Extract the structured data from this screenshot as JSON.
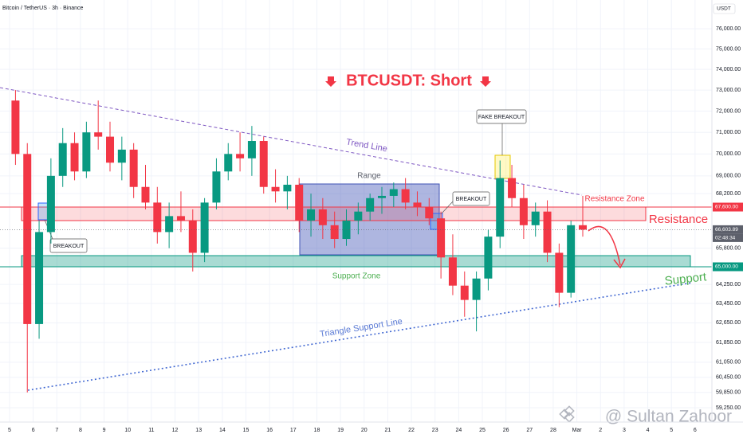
{
  "header": "Bitcoin / TetherUS · 3h · Binance",
  "currency": "USDT",
  "watermark": "@ Sultan Zahoor",
  "chart_data": {
    "type": "candlestick",
    "title": "BTCUSDT: Short",
    "open": [
      72500,
      70000,
      62600,
      66500,
      69000,
      70500,
      69200,
      71000,
      70800,
      69600,
      70200,
      68500,
      67800,
      66500,
      67200,
      67000,
      65600,
      67800,
      69200,
      70000,
      69800,
      70600,
      68500,
      68300,
      68600,
      67000,
      67500,
      66800,
      66200,
      67000,
      67400,
      68000,
      68100,
      68400,
      67800,
      67600,
      67100,
      65400,
      64200,
      63600,
      64500,
      66300,
      68900,
      68000,
      66800,
      67400,
      65600,
      63900,
      66800
    ],
    "high": [
      73000,
      70500,
      67000,
      69800,
      71200,
      71000,
      71500,
      72500,
      71500,
      70800,
      70500,
      69500,
      68500,
      67800,
      68300,
      67500,
      68000,
      69800,
      70500,
      71000,
      71300,
      70800,
      69300,
      69000,
      68900,
      68200,
      68000,
      67400,
      67500,
      67800,
      68200,
      68500,
      68700,
      68900,
      68300,
      68000,
      67400,
      66400,
      64800,
      64800,
      66600,
      69700,
      69500,
      68600,
      67800,
      67900,
      66000,
      67000,
      68100
    ],
    "low": [
      69500,
      59850,
      62000,
      66000,
      68500,
      68800,
      68900,
      70200,
      69200,
      68800,
      68000,
      67500,
      66000,
      65800,
      66500,
      64800,
      65200,
      67500,
      68800,
      69200,
      69000,
      68200,
      67800,
      67500,
      66500,
      66300,
      66200,
      65800,
      65900,
      66400,
      67000,
      67300,
      67600,
      67500,
      67200,
      66800,
      64500,
      63800,
      62900,
      62300,
      64000,
      65800,
      67600,
      66200,
      66300,
      65200,
      63300,
      63700,
      66300
    ],
    "close": [
      70000,
      62600,
      66500,
      69000,
      70500,
      69200,
      71000,
      70800,
      69600,
      70200,
      68500,
      67800,
      66500,
      67200,
      67000,
      65600,
      67800,
      69200,
      70000,
      69800,
      70600,
      68500,
      68300,
      68600,
      67000,
      67500,
      66800,
      66200,
      67000,
      67400,
      68000,
      68100,
      68400,
      67800,
      67600,
      67100,
      65400,
      64200,
      63600,
      64500,
      66300,
      68900,
      68000,
      66800,
      67400,
      65600,
      63900,
      66800,
      66603.89
    ],
    "up_color": "#089981",
    "down_color": "#f23645",
    "log_scale": true,
    "grid": true,
    "ylim": [
      58850,
      77450
    ],
    "yticks": [
      {
        "value": 76000,
        "label": "76,000.00"
      },
      {
        "value": 75000,
        "label": "75,000.00"
      },
      {
        "value": 74000,
        "label": "74,000.00"
      },
      {
        "value": 73000,
        "label": "73,000.00"
      },
      {
        "value": 72000,
        "label": "72,000.00"
      },
      {
        "value": 71000,
        "label": "71,000.00"
      },
      {
        "value": 70000,
        "label": "70,000.00"
      },
      {
        "value": 69000,
        "label": "69,000.00"
      },
      {
        "value": 68200,
        "label": "68,200.00"
      },
      {
        "value": 65800,
        "label": "65,800.00"
      },
      {
        "value": 64250,
        "label": "64,250.00"
      },
      {
        "value": 63450,
        "label": "63,450.00"
      },
      {
        "value": 62650,
        "label": "62,650.00"
      },
      {
        "value": 61850,
        "label": "61,850.00"
      },
      {
        "value": 61050,
        "label": "61,050.00"
      },
      {
        "value": 60450,
        "label": "60,450.00"
      },
      {
        "value": 59850,
        "label": "59,850.00"
      },
      {
        "value": 59250,
        "label": "59,250.00"
      }
    ],
    "x_labels": [
      "5",
      "6",
      "7",
      "8",
      "9",
      "10",
      "11",
      "12",
      "13",
      "14",
      "15",
      "16",
      "17",
      "18",
      "19",
      "20",
      "21",
      "22",
      "23",
      "24",
      "25",
      "26",
      "27",
      "28",
      "Mar",
      "2",
      "3",
      "4",
      "5",
      "6"
    ],
    "price_lines": [
      {
        "value": 67600,
        "label": "67,600.00",
        "color": "#f23645"
      },
      {
        "value": 66603.89,
        "label": "66,603.89",
        "color": "#5d606b"
      },
      {
        "value": 65000,
        "label": "65,000.00",
        "color": "#089981"
      }
    ],
    "countdown": "02:48:34",
    "annotations": {
      "trend_line": "Trend Line",
      "range": "Range",
      "breakout_left": "BREAKOUT",
      "breakout_right": "BREAKOUT",
      "fake_breakout": "FAKE BREAKOUT",
      "resistance_zone": "Resistance Zone",
      "resistance": "Resistance",
      "support_zone": "Support Zone",
      "support": "Support",
      "triangle_support_line": "Triangle Support Line"
    }
  }
}
